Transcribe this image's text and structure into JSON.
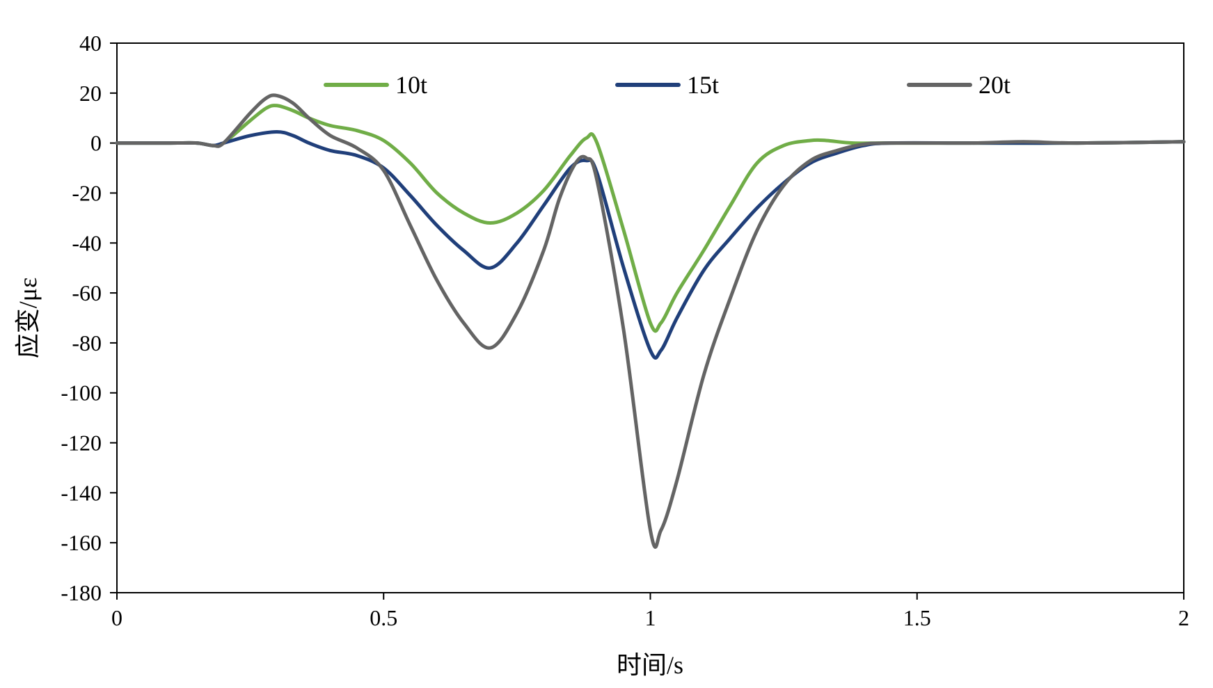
{
  "chart_data": {
    "type": "line",
    "title": "",
    "xlabel": "时间/s",
    "ylabel": "应变/με",
    "xlim": [
      0,
      2
    ],
    "ylim": [
      -180,
      40
    ],
    "xticks": [
      0,
      0.5,
      1,
      1.5,
      2
    ],
    "xtick_labels": [
      "0",
      "0.5",
      "1",
      "1.5",
      "2"
    ],
    "yticks": [
      40,
      20,
      0,
      -20,
      -40,
      -60,
      -80,
      -100,
      -120,
      -140,
      -160,
      -180
    ],
    "ytick_labels": [
      "40",
      "20",
      "0",
      "-20",
      "-40",
      "-60",
      "-80",
      "-100",
      "-120",
      "-140",
      "-160",
      "-180"
    ],
    "grid": false,
    "legend_position": "top",
    "series": [
      {
        "name": "10t",
        "color": "#70ad47",
        "points": [
          [
            0,
            0
          ],
          [
            0.1,
            0
          ],
          [
            0.15,
            0
          ],
          [
            0.18,
            -1
          ],
          [
            0.2,
            0
          ],
          [
            0.25,
            9
          ],
          [
            0.28,
            14
          ],
          [
            0.3,
            15
          ],
          [
            0.33,
            13
          ],
          [
            0.36,
            10
          ],
          [
            0.4,
            7
          ],
          [
            0.45,
            5
          ],
          [
            0.5,
            1
          ],
          [
            0.55,
            -8
          ],
          [
            0.6,
            -20
          ],
          [
            0.65,
            -28
          ],
          [
            0.7,
            -32
          ],
          [
            0.75,
            -28
          ],
          [
            0.8,
            -19
          ],
          [
            0.85,
            -5
          ],
          [
            0.88,
            2
          ],
          [
            0.9,
            0
          ],
          [
            0.95,
            -35
          ],
          [
            1.0,
            -72
          ],
          [
            1.02,
            -72
          ],
          [
            1.05,
            -60
          ],
          [
            1.1,
            -43
          ],
          [
            1.15,
            -25
          ],
          [
            1.2,
            -8
          ],
          [
            1.25,
            -1
          ],
          [
            1.3,
            1
          ],
          [
            1.33,
            1
          ],
          [
            1.38,
            0
          ],
          [
            1.45,
            0
          ],
          [
            1.6,
            0
          ],
          [
            1.8,
            0
          ],
          [
            2.0,
            0.5
          ]
        ]
      },
      {
        "name": "15t",
        "color": "#203f7a",
        "points": [
          [
            0,
            0
          ],
          [
            0.1,
            0
          ],
          [
            0.15,
            0
          ],
          [
            0.18,
            -1
          ],
          [
            0.2,
            0
          ],
          [
            0.25,
            3
          ],
          [
            0.3,
            4.5
          ],
          [
            0.33,
            3
          ],
          [
            0.36,
            0
          ],
          [
            0.4,
            -3
          ],
          [
            0.45,
            -5
          ],
          [
            0.5,
            -10
          ],
          [
            0.55,
            -21
          ],
          [
            0.6,
            -33
          ],
          [
            0.65,
            -43
          ],
          [
            0.7,
            -50
          ],
          [
            0.75,
            -40
          ],
          [
            0.8,
            -25
          ],
          [
            0.85,
            -10
          ],
          [
            0.88,
            -7
          ],
          [
            0.9,
            -12
          ],
          [
            0.95,
            -50
          ],
          [
            1.0,
            -83
          ],
          [
            1.02,
            -83
          ],
          [
            1.05,
            -70
          ],
          [
            1.1,
            -51
          ],
          [
            1.15,
            -38
          ],
          [
            1.2,
            -26
          ],
          [
            1.25,
            -16
          ],
          [
            1.3,
            -8
          ],
          [
            1.35,
            -4
          ],
          [
            1.4,
            -1
          ],
          [
            1.45,
            0
          ],
          [
            1.6,
            0
          ],
          [
            1.8,
            0
          ],
          [
            2.0,
            0.5
          ]
        ]
      },
      {
        "name": "20t",
        "color": "#646464",
        "points": [
          [
            0,
            0
          ],
          [
            0.1,
            0
          ],
          [
            0.15,
            0
          ],
          [
            0.18,
            -1
          ],
          [
            0.2,
            0
          ],
          [
            0.25,
            12
          ],
          [
            0.28,
            18
          ],
          [
            0.3,
            19
          ],
          [
            0.33,
            16
          ],
          [
            0.36,
            10
          ],
          [
            0.4,
            3
          ],
          [
            0.45,
            -2
          ],
          [
            0.5,
            -11
          ],
          [
            0.55,
            -33
          ],
          [
            0.6,
            -55
          ],
          [
            0.65,
            -72
          ],
          [
            0.7,
            -82
          ],
          [
            0.75,
            -68
          ],
          [
            0.8,
            -43
          ],
          [
            0.83,
            -22
          ],
          [
            0.86,
            -8
          ],
          [
            0.88,
            -6
          ],
          [
            0.9,
            -15
          ],
          [
            0.95,
            -75
          ],
          [
            1.0,
            -155
          ],
          [
            1.02,
            -155
          ],
          [
            1.05,
            -135
          ],
          [
            1.1,
            -93
          ],
          [
            1.15,
            -62
          ],
          [
            1.2,
            -35
          ],
          [
            1.25,
            -17
          ],
          [
            1.3,
            -7
          ],
          [
            1.35,
            -3
          ],
          [
            1.4,
            -0.5
          ],
          [
            1.45,
            0
          ],
          [
            1.6,
            0
          ],
          [
            1.7,
            0.5
          ],
          [
            1.8,
            0
          ],
          [
            2.0,
            0.5
          ]
        ]
      }
    ]
  }
}
